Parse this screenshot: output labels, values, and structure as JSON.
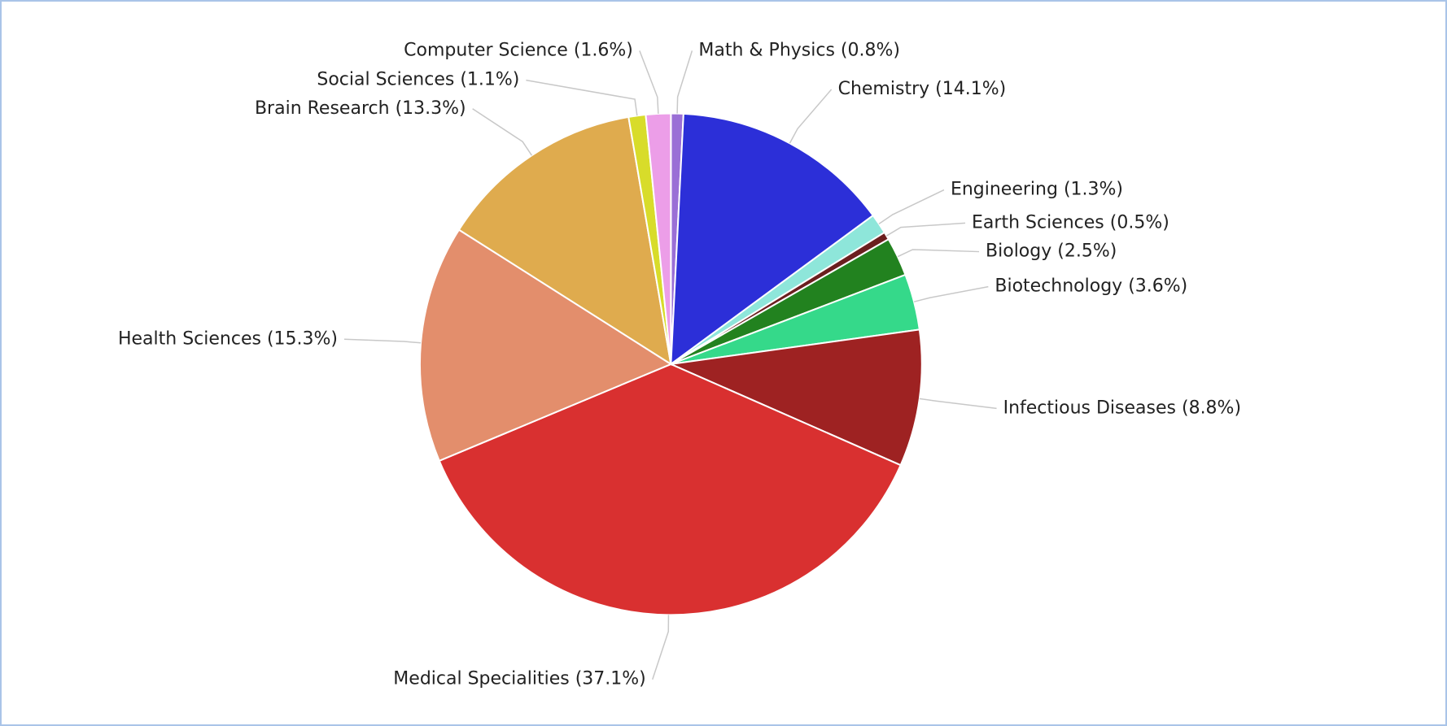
{
  "chart_data": {
    "type": "pie",
    "categories": [
      "Math & Physics",
      "Chemistry",
      "Engineering",
      "Earth Sciences",
      "Biology",
      "Biotechnology",
      "Infectious Diseases",
      "Medical Specialities",
      "Health Sciences",
      "Brain Research",
      "Social Sciences",
      "Computer Science"
    ],
    "values": [
      0.8,
      14.1,
      1.3,
      0.5,
      2.5,
      3.6,
      8.8,
      37.1,
      15.3,
      13.3,
      1.1,
      1.6
    ],
    "value_labels": [
      "(0.8%)",
      "(14.1%)",
      "(1.3%)",
      "(0.5%)",
      "(2.5%)",
      "(3.6%)",
      "(8.8%)",
      "(37.1%)",
      "(15.3%)",
      "(13.3%)",
      "(1.1%)",
      "(1.6%)"
    ],
    "colors": [
      "#9a6fd6",
      "#2c2fd8",
      "#8ee6da",
      "#6b1f1f",
      "#22821f",
      "#35d98a",
      "#9e2222",
      "#d93030",
      "#e38e6c",
      "#dfab4e",
      "#d8dc2a",
      "#ec9ee8"
    ]
  }
}
